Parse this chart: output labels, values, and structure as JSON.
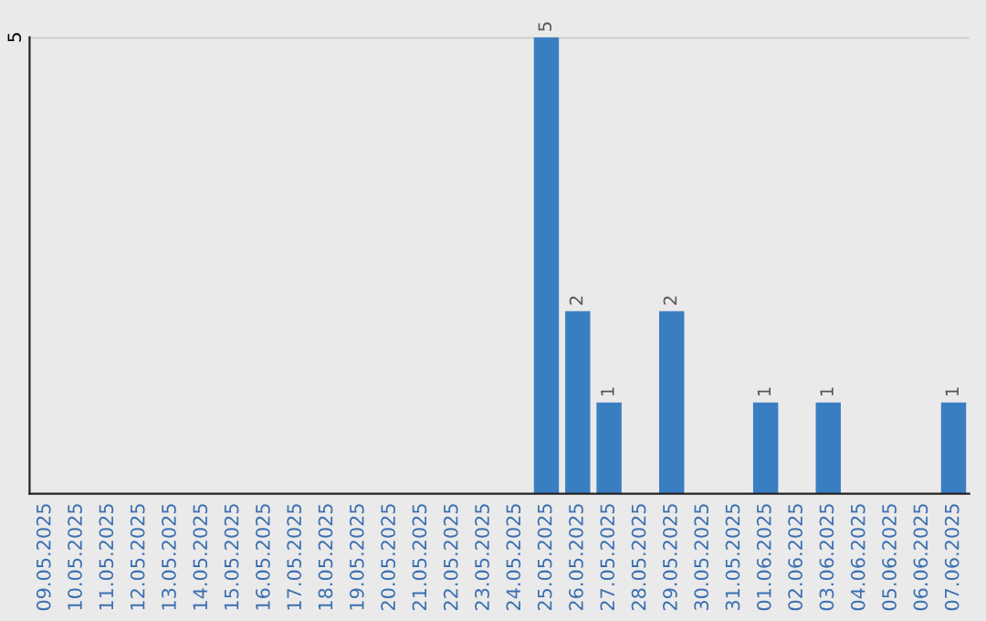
{
  "chart_data": {
    "type": "bar",
    "categories": [
      "09.05.2025",
      "10.05.2025",
      "11.05.2025",
      "12.05.2025",
      "13.05.2025",
      "14.05.2025",
      "15.05.2025",
      "16.05.2025",
      "17.05.2025",
      "18.05.2025",
      "19.05.2025",
      "20.05.2025",
      "21.05.2025",
      "22.05.2025",
      "23.05.2025",
      "24.05.2025",
      "25.05.2025",
      "26.05.2025",
      "27.05.2025",
      "28.05.2025",
      "29.05.2025",
      "30.05.2025",
      "31.05.2025",
      "01.06.2025",
      "02.06.2025",
      "03.06.2025",
      "04.06.2025",
      "05.06.2025",
      "06.06.2025",
      "07.06.2025"
    ],
    "values": [
      null,
      null,
      null,
      null,
      null,
      null,
      null,
      null,
      null,
      null,
      null,
      null,
      null,
      null,
      null,
      null,
      5,
      2,
      1,
      null,
      2,
      null,
      null,
      1,
      null,
      1,
      null,
      null,
      null,
      1
    ],
    "data_labels": true,
    "color": "#3a7ec2",
    "ylim": [
      0,
      5
    ],
    "yticks": [
      5
    ],
    "ref_lines": [
      {
        "axis": "y",
        "value": 5,
        "color": "#c8c8c8"
      }
    ],
    "legend": false
  }
}
